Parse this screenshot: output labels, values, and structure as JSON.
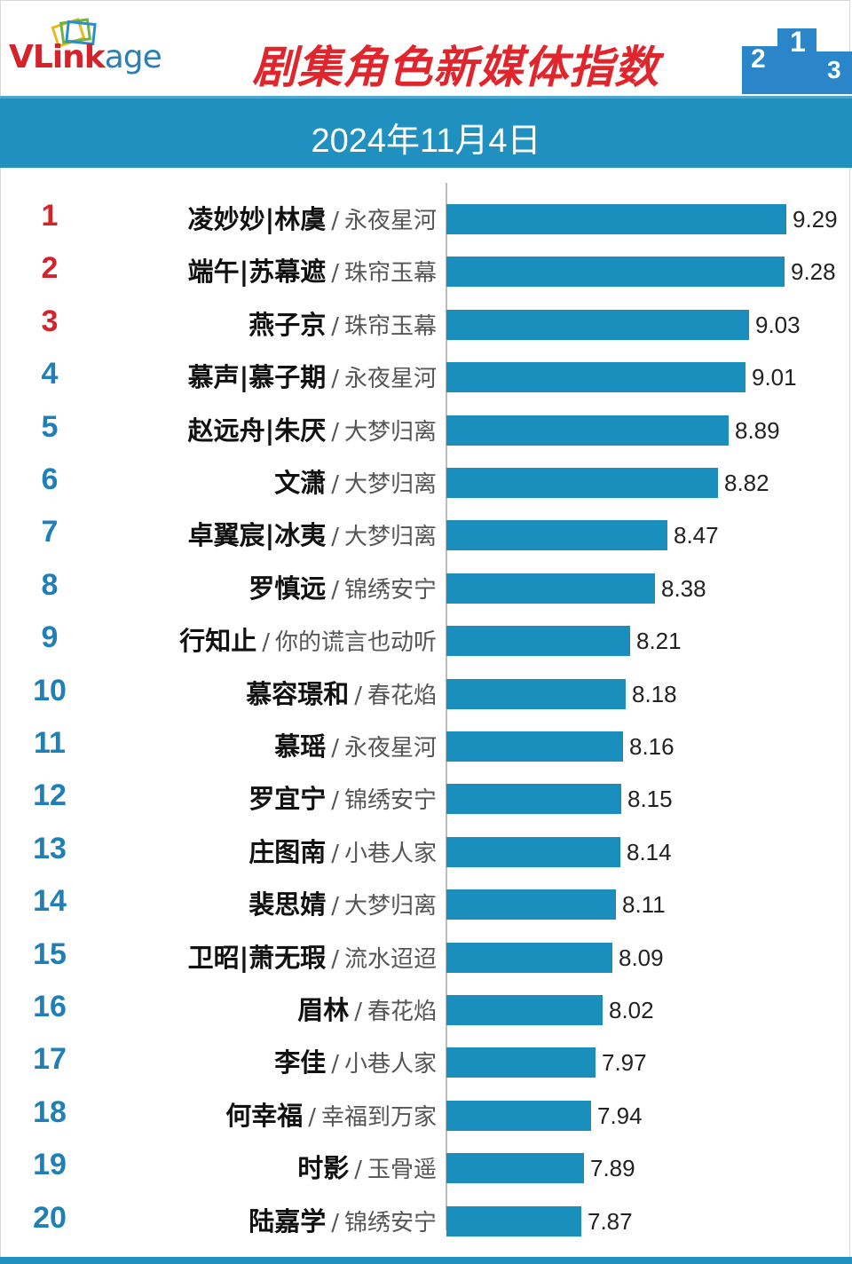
{
  "header": {
    "logo": {
      "v": "V",
      "link": "Link",
      "age": "age"
    },
    "title": "剧集角色新媒体指数",
    "date": "2024年11月4日"
  },
  "colors": {
    "bar": "#1a8fbe",
    "banner": "#1f90c0",
    "title": "#e0262c",
    "rank_top3": "#d4232b",
    "rank_rest": "#1f7fb6"
  },
  "chart_data": {
    "type": "bar",
    "orientation": "horizontal",
    "title": "剧集角色新媒体指数",
    "subtitle": "2024年11月4日",
    "xlim": [
      0,
      9.29
    ],
    "rows": [
      {
        "rank": "1",
        "name": "凌妙妙|林虞",
        "drama": "永夜星河",
        "value": 9.29,
        "label": "9.29"
      },
      {
        "rank": "2",
        "name": "端午|苏幕遮",
        "drama": "珠帘玉幕",
        "value": 9.28,
        "label": "9.28"
      },
      {
        "rank": "3",
        "name": "燕子京",
        "drama": "珠帘玉幕",
        "value": 9.03,
        "label": "9.03"
      },
      {
        "rank": "4",
        "name": "慕声|慕子期",
        "drama": "永夜星河",
        "value": 9.01,
        "label": "9.01"
      },
      {
        "rank": "5",
        "name": "赵远舟|朱厌",
        "drama": "大梦归离",
        "value": 8.89,
        "label": "8.89"
      },
      {
        "rank": "6",
        "name": "文潇",
        "drama": "大梦归离",
        "value": 8.82,
        "label": "8.82"
      },
      {
        "rank": "7",
        "name": "卓翼宸|冰夷",
        "drama": "大梦归离",
        "value": 8.47,
        "label": "8.47"
      },
      {
        "rank": "8",
        "name": "罗慎远",
        "drama": "锦绣安宁",
        "value": 8.38,
        "label": "8.38"
      },
      {
        "rank": "9",
        "name": "行知止",
        "drama": "你的谎言也动听",
        "value": 8.21,
        "label": "8.21"
      },
      {
        "rank": "10",
        "name": "慕容璟和",
        "drama": "春花焰",
        "value": 8.18,
        "label": "8.18"
      },
      {
        "rank": "11",
        "name": "慕瑶",
        "drama": "永夜星河",
        "value": 8.16,
        "label": "8.16"
      },
      {
        "rank": "12",
        "name": "罗宜宁",
        "drama": "锦绣安宁",
        "value": 8.15,
        "label": "8.15"
      },
      {
        "rank": "13",
        "name": "庄图南",
        "drama": "小巷人家",
        "value": 8.14,
        "label": "8.14"
      },
      {
        "rank": "14",
        "name": "裴思婧",
        "drama": "大梦归离",
        "value": 8.11,
        "label": "8.11"
      },
      {
        "rank": "15",
        "name": "卫昭|萧无瑕",
        "drama": "流水迢迢",
        "value": 8.09,
        "label": "8.09"
      },
      {
        "rank": "16",
        "name": "眉林",
        "drama": "春花焰",
        "value": 8.02,
        "label": "8.02"
      },
      {
        "rank": "17",
        "name": "李佳",
        "drama": "小巷人家",
        "value": 7.97,
        "label": "7.97"
      },
      {
        "rank": "18",
        "name": "何幸福",
        "drama": "幸福到万家",
        "value": 7.94,
        "label": "7.94"
      },
      {
        "rank": "19",
        "name": "时影",
        "drama": "玉骨遥",
        "value": 7.89,
        "label": "7.89"
      },
      {
        "rank": "20",
        "name": "陆嘉学",
        "drama": "锦绣安宁",
        "value": 7.87,
        "label": "7.87"
      }
    ]
  }
}
